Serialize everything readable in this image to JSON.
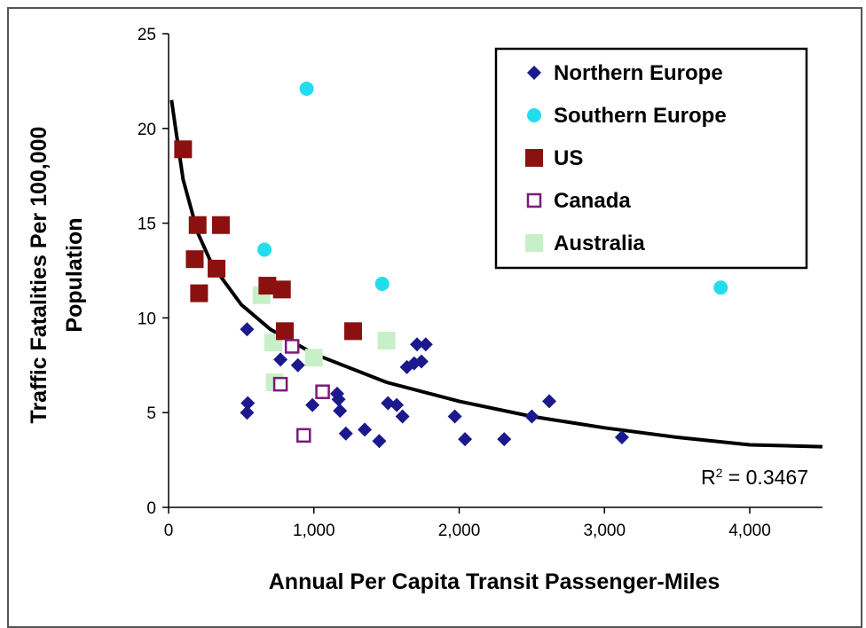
{
  "chart_data": {
    "type": "scatter",
    "title": "",
    "xlabel": "Annual Per Capita Transit Passenger-Miles",
    "ylabel_line1": "Traffic Fatalities Per 100,000",
    "ylabel_line2": "Population",
    "xlim": [
      0,
      4500
    ],
    "ylim": [
      0,
      25
    ],
    "xticks": [
      0,
      1000,
      2000,
      3000,
      4000
    ],
    "xtick_labels": [
      "0",
      "1,000",
      "2,000",
      "3,000",
      "4,000"
    ],
    "yticks": [
      0,
      5,
      10,
      15,
      20,
      25
    ],
    "ytick_labels": [
      "0",
      "5",
      "10",
      "15",
      "20",
      "25"
    ],
    "grid": false,
    "legend_position": "top-right",
    "series": [
      {
        "name": "Northern Europe",
        "marker": "diamond",
        "color": "#1a1a8c",
        "points": [
          [
            540,
            9.4
          ],
          [
            540,
            5.0
          ],
          [
            545,
            5.5
          ],
          [
            770,
            7.8
          ],
          [
            890,
            7.5
          ],
          [
            990,
            5.4
          ],
          [
            1160,
            6.0
          ],
          [
            1170,
            5.7
          ],
          [
            1180,
            5.1
          ],
          [
            1220,
            3.9
          ],
          [
            1350,
            4.1
          ],
          [
            1450,
            3.5
          ],
          [
            1510,
            5.5
          ],
          [
            1570,
            5.4
          ],
          [
            1610,
            4.8
          ],
          [
            1640,
            7.4
          ],
          [
            1690,
            7.6
          ],
          [
            1710,
            8.6
          ],
          [
            1740,
            7.7
          ],
          [
            1770,
            8.6
          ],
          [
            1970,
            4.8
          ],
          [
            2040,
            3.6
          ],
          [
            2310,
            3.6
          ],
          [
            2500,
            4.8
          ],
          [
            2620,
            5.6
          ],
          [
            3120,
            3.7
          ]
        ]
      },
      {
        "name": "Southern Europe",
        "marker": "circle",
        "color": "#22ddee",
        "points": [
          [
            950,
            22.1
          ],
          [
            660,
            13.6
          ],
          [
            1470,
            11.8
          ],
          [
            3800,
            11.6
          ]
        ]
      },
      {
        "name": "US",
        "marker": "square",
        "color": "#8b1010",
        "points": [
          [
            100,
            18.9
          ],
          [
            200,
            14.9
          ],
          [
            360,
            14.9
          ],
          [
            180,
            13.1
          ],
          [
            330,
            12.6
          ],
          [
            210,
            11.3
          ],
          [
            680,
            11.7
          ],
          [
            780,
            11.5
          ],
          [
            800,
            9.3
          ],
          [
            1270,
            9.3
          ]
        ]
      },
      {
        "name": "Canada",
        "marker": "open-square",
        "color": "#7a1a7a",
        "points": [
          [
            850,
            8.5
          ],
          [
            770,
            6.5
          ],
          [
            1060,
            6.1
          ],
          [
            930,
            3.8
          ]
        ]
      },
      {
        "name": "Australia",
        "marker": "square",
        "color": "#c8f0c8",
        "points": [
          [
            640,
            11.2
          ],
          [
            720,
            8.7
          ],
          [
            730,
            6.6
          ],
          [
            1000,
            7.9
          ],
          [
            1500,
            8.8
          ]
        ]
      }
    ],
    "trendline": {
      "type": "logarithmic",
      "color": "#000000",
      "r2_label": "R",
      "r2_sup": "2",
      "r2_value": " = 0.3467",
      "curve": [
        [
          20,
          21.5
        ],
        [
          50,
          19.9
        ],
        [
          100,
          17.3
        ],
        [
          200,
          14.5
        ],
        [
          300,
          12.8
        ],
        [
          500,
          10.7
        ],
        [
          700,
          9.4
        ],
        [
          1000,
          8.1
        ],
        [
          1500,
          6.6
        ],
        [
          2000,
          5.6
        ],
        [
          2500,
          4.8
        ],
        [
          3000,
          4.2
        ],
        [
          3500,
          3.7
        ],
        [
          4000,
          3.3
        ],
        [
          4500,
          3.2
        ]
      ]
    }
  }
}
